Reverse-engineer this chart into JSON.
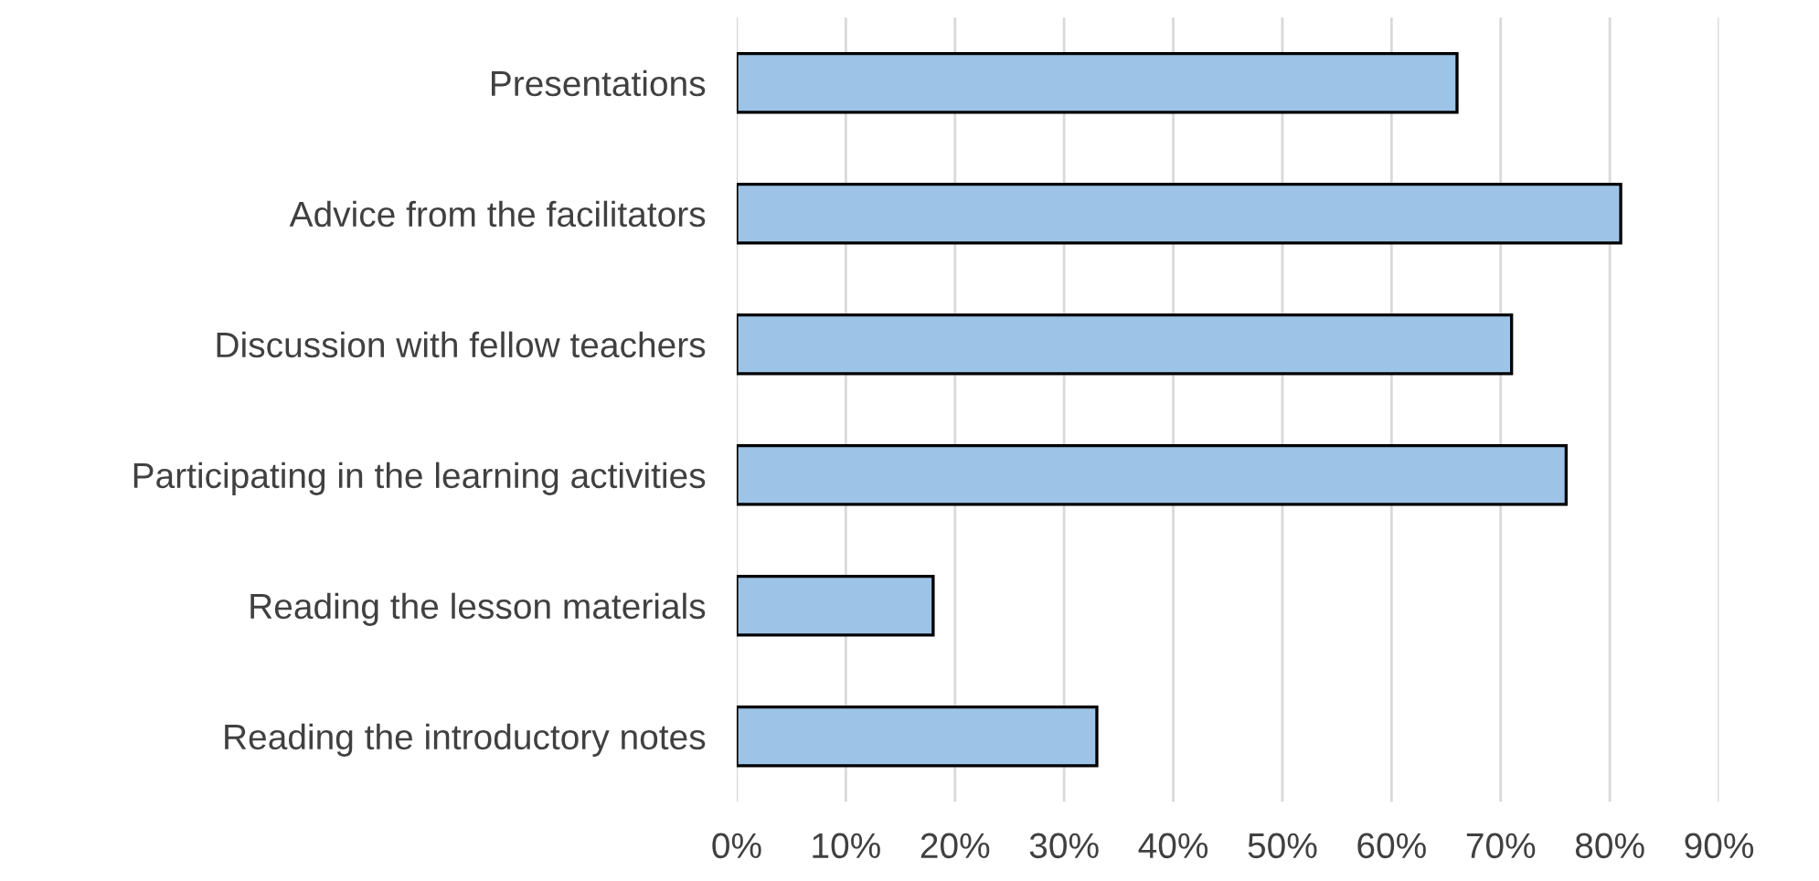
{
  "chart_data": {
    "type": "bar",
    "orientation": "horizontal",
    "categories": [
      "Presentations",
      "Advice from the facilitators",
      "Discussion with fellow teachers",
      "Participating in the learning activities",
      "Reading the lesson materials",
      "Reading the introductory notes"
    ],
    "values": [
      66,
      81,
      71,
      76,
      18,
      33
    ],
    "color": "#9dc3e6",
    "xlim": [
      0,
      90
    ],
    "xticks": [
      {
        "value": 0,
        "label": "0%"
      },
      {
        "value": 10,
        "label": "10%"
      },
      {
        "value": 20,
        "label": "20%"
      },
      {
        "value": 30,
        "label": "30%"
      },
      {
        "value": 40,
        "label": "40%"
      },
      {
        "value": 50,
        "label": "50%"
      },
      {
        "value": 60,
        "label": "60%"
      },
      {
        "value": 70,
        "label": "70%"
      },
      {
        "value": 80,
        "label": "80%"
      },
      {
        "value": 90,
        "label": "90%"
      }
    ],
    "grid": "x",
    "legend": false
  }
}
